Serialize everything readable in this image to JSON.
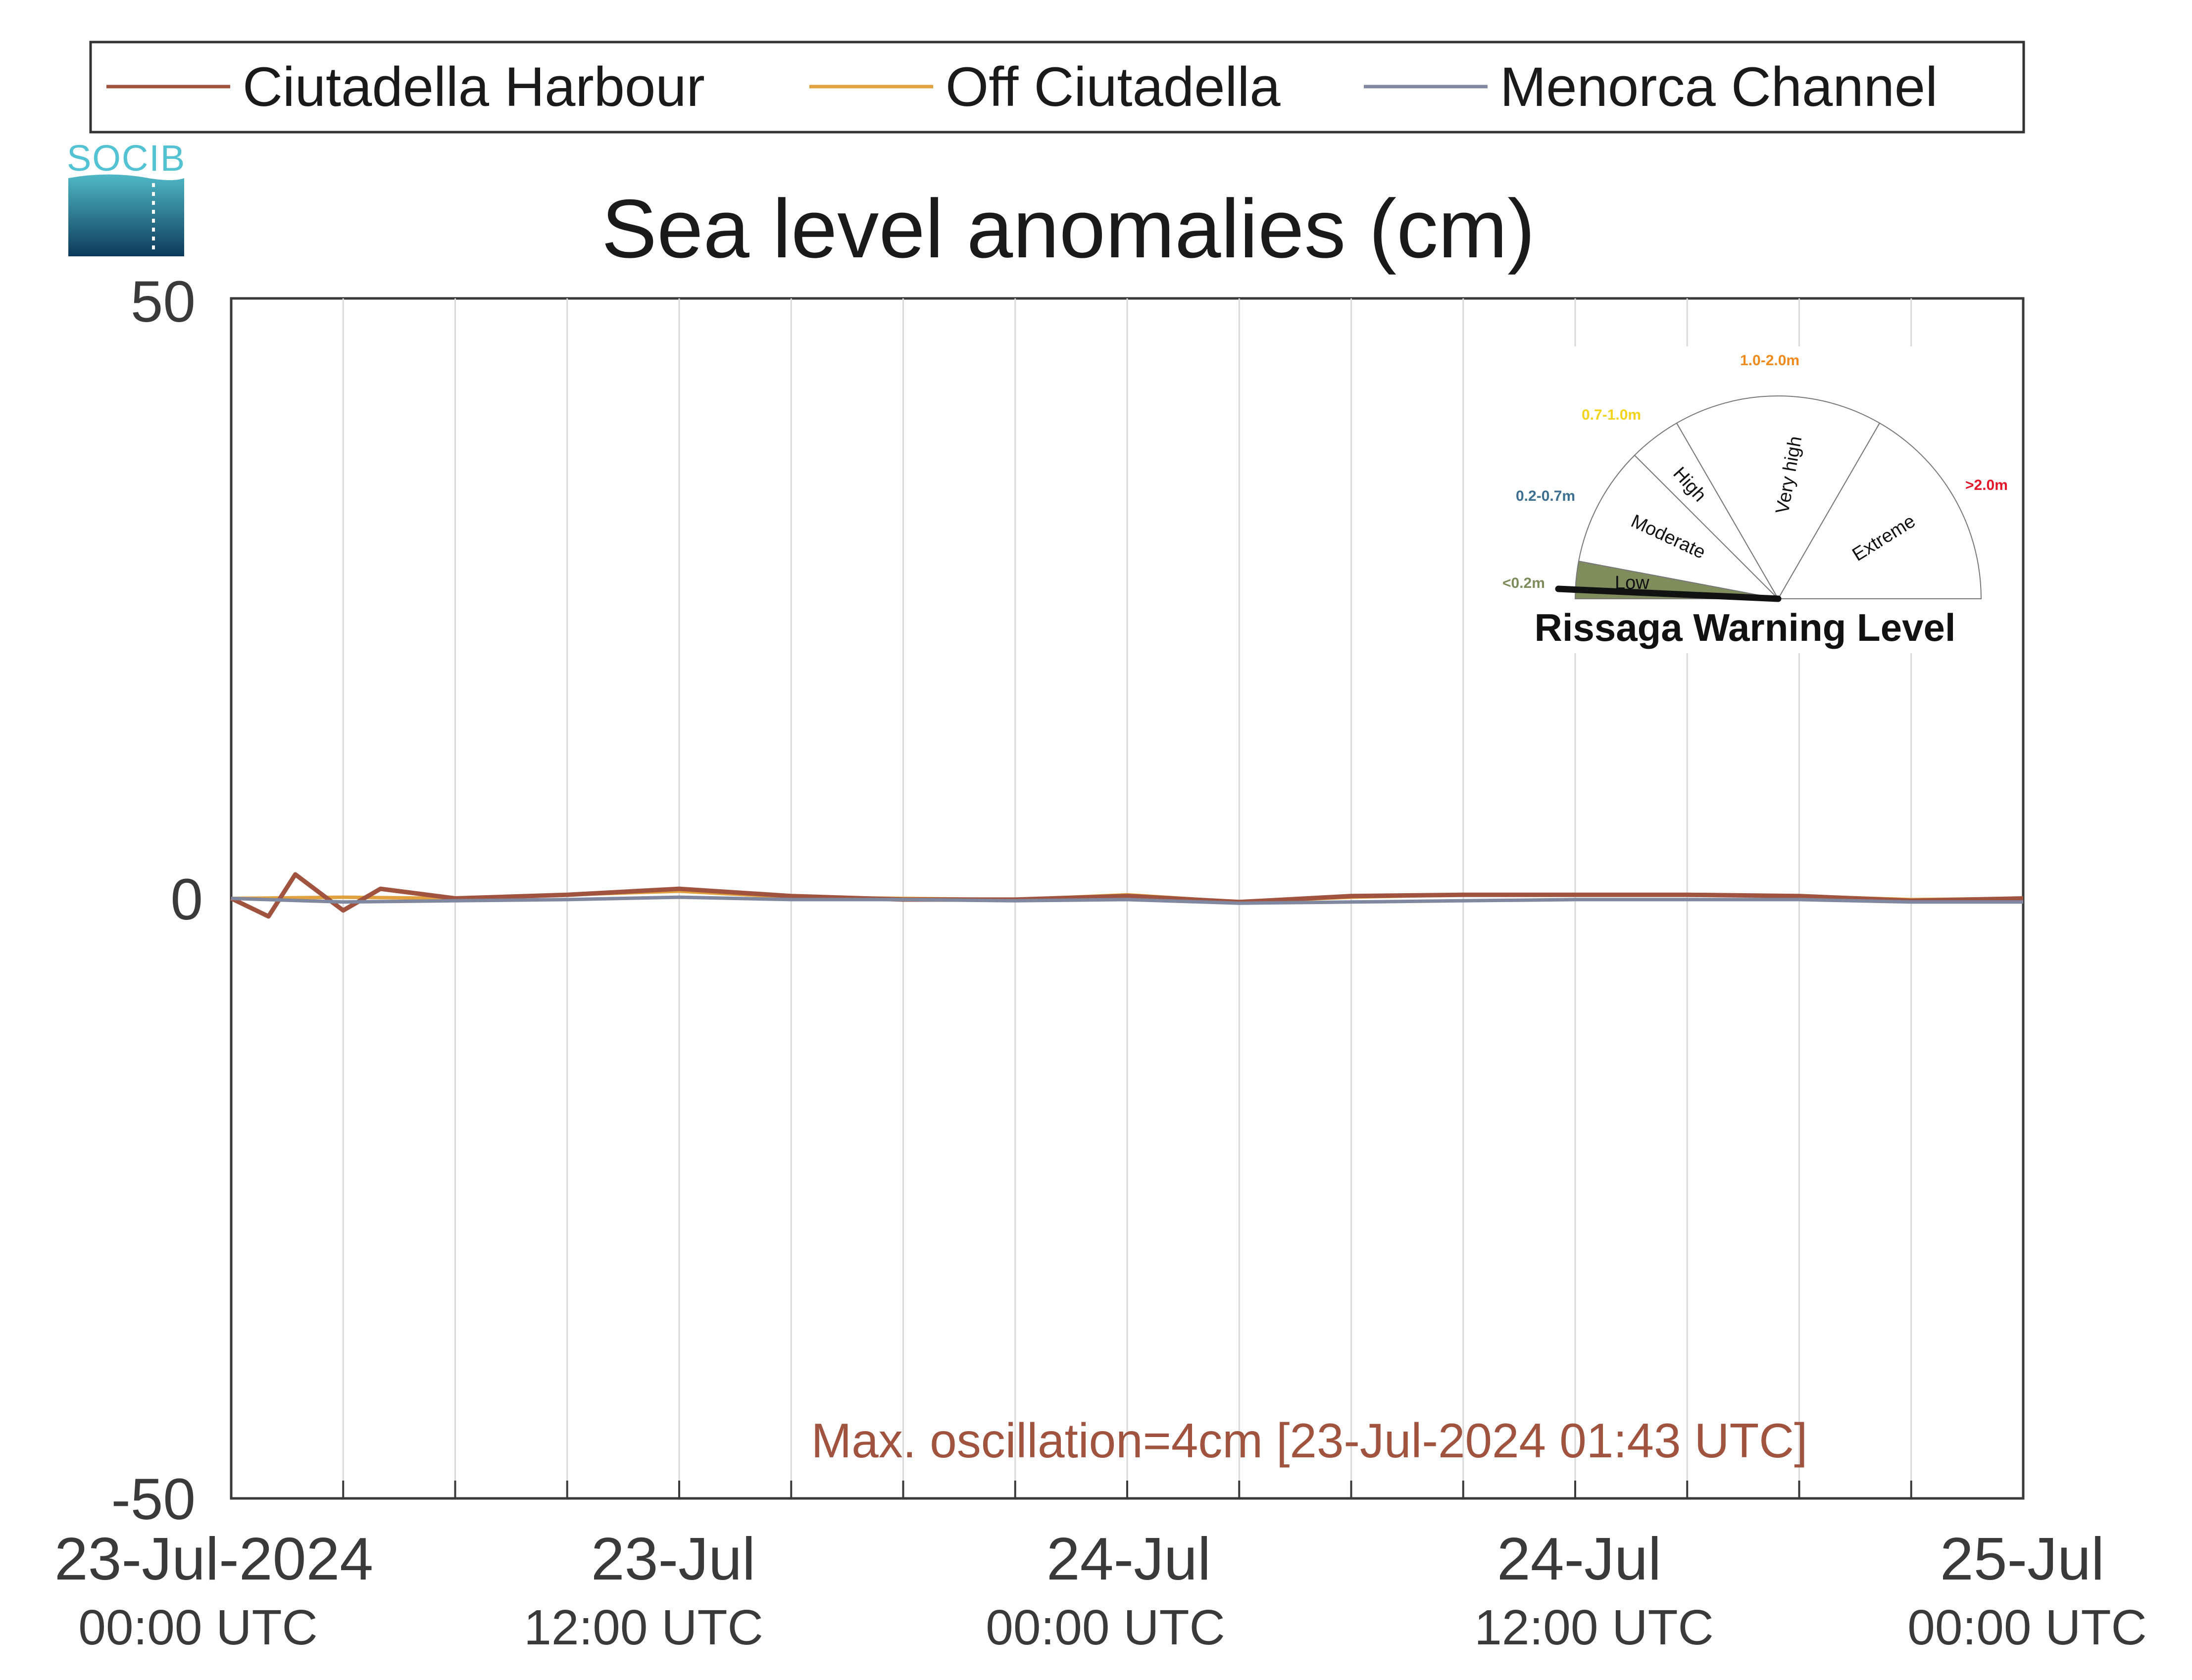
{
  "chart_data": {
    "type": "line",
    "title": "Sea level anomalies (cm)",
    "xlabel": "",
    "ylabel": "",
    "ylim": [
      -50,
      50
    ],
    "y_ticks": [
      "50",
      "0",
      "-50"
    ],
    "xlim": [
      "2024-07-23T00:00",
      "2024-07-25T00:00"
    ],
    "x_tick_labels": [
      {
        "date": "23-Jul-2024",
        "time": "00:00 UTC"
      },
      {
        "date": "23-Jul",
        "time": "12:00 UTC"
      },
      {
        "date": "24-Jul",
        "time": "00:00 UTC"
      },
      {
        "date": "24-Jul",
        "time": "12:00 UTC"
      },
      {
        "date": "25-Jul",
        "time": "00:00 UTC"
      }
    ],
    "grid": "vertical",
    "legend_position": "top",
    "series": [
      {
        "name": "Ciutadella Harbour",
        "color": "#a0533f",
        "x": [
          "2024-07-23T00:00",
          "2024-07-23T01:00",
          "2024-07-23T01:43",
          "2024-07-23T03:00",
          "2024-07-23T04:00",
          "2024-07-23T06:00",
          "2024-07-23T09:00",
          "2024-07-23T12:00",
          "2024-07-23T15:00",
          "2024-07-23T18:00",
          "2024-07-23T21:00",
          "2024-07-24T00:00",
          "2024-07-24T03:00",
          "2024-07-24T06:00",
          "2024-07-24T09:00",
          "2024-07-24T12:00",
          "2024-07-24T15:00",
          "2024-07-24T18:00",
          "2024-07-24T21:00",
          "2024-07-25T00:00"
        ],
        "values": [
          0,
          -1.5,
          2,
          -1,
          0.8,
          0,
          0.3,
          0.8,
          0.2,
          -0.1,
          -0.1,
          0.2,
          -0.3,
          0.2,
          0.3,
          0.3,
          0.3,
          0.2,
          -0.2,
          0
        ]
      },
      {
        "name": "Off Ciutadella",
        "color": "#e0a13e",
        "x": [
          "2024-07-23T00:00",
          "2024-07-23T03:00",
          "2024-07-23T06:00",
          "2024-07-23T09:00",
          "2024-07-23T12:00",
          "2024-07-23T15:00",
          "2024-07-23T18:00",
          "2024-07-23T21:00",
          "2024-07-24T00:00",
          "2024-07-24T03:00",
          "2024-07-24T06:00",
          "2024-07-24T09:00",
          "2024-07-24T12:00",
          "2024-07-24T15:00",
          "2024-07-24T18:00",
          "2024-07-24T21:00",
          "2024-07-25T00:00"
        ],
        "values": [
          0,
          0.1,
          0,
          0.3,
          0.6,
          0.1,
          0,
          -0.1,
          0.3,
          -0.3,
          0.1,
          0.3,
          0.3,
          0.3,
          0.2,
          -0.1,
          0
        ]
      },
      {
        "name": "Menorca Channel",
        "color": "#8088a0",
        "x": [
          "2024-07-23T00:00",
          "2024-07-23T03:00",
          "2024-07-23T06:00",
          "2024-07-23T09:00",
          "2024-07-23T12:00",
          "2024-07-23T15:00",
          "2024-07-23T18:00",
          "2024-07-23T21:00",
          "2024-07-24T00:00",
          "2024-07-24T03:00",
          "2024-07-24T06:00",
          "2024-07-24T09:00",
          "2024-07-24T12:00",
          "2024-07-24T15:00",
          "2024-07-24T18:00",
          "2024-07-24T21:00",
          "2024-07-25T00:00"
        ],
        "values": [
          0,
          -0.3,
          -0.2,
          -0.1,
          0.1,
          -0.1,
          -0.1,
          -0.2,
          -0.1,
          -0.4,
          -0.3,
          -0.2,
          -0.1,
          -0.1,
          -0.1,
          -0.3,
          -0.3
        ]
      }
    ],
    "annotation": "Max. oscillation=4cm [23-Jul-2024 01:43 UTC]"
  },
  "logo": {
    "text": "SOCIB"
  },
  "gauge": {
    "title": "Rissaga Warning Level",
    "current_level": "Low",
    "segments": [
      {
        "label": "Low",
        "range": "<0.2m",
        "range_color": "#7c8c5a",
        "fill": "#7f8c5c"
      },
      {
        "label": "Moderate",
        "range": "0.2-0.7m",
        "range_color": "#3d6f91",
        "fill": "#ffffff"
      },
      {
        "label": "High",
        "range": "0.7-1.0m",
        "range_color": "#f2d41c",
        "fill": "#ffffff"
      },
      {
        "label": "Very high",
        "range": "1.0-2.0m",
        "range_color": "#ef8a1c",
        "fill": "#ffffff"
      },
      {
        "label": "Extreme",
        "range": ">2.0m",
        "range_color": "#e3162a",
        "fill": "#ffffff"
      }
    ]
  }
}
